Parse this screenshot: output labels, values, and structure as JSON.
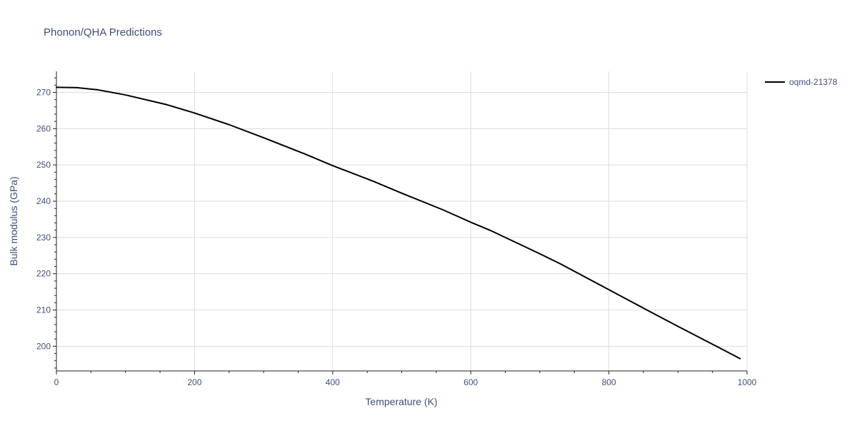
{
  "chart_data": {
    "type": "line",
    "title": "Phonon/QHA Predictions",
    "xlabel": "Temperature (K)",
    "ylabel": "Bulk modulus (GPa)",
    "xlim": [
      0,
      1000
    ],
    "ylim": [
      193.2,
      275.8
    ],
    "xticks": [
      0,
      200,
      400,
      600,
      800,
      1000
    ],
    "yticks": [
      200,
      210,
      220,
      230,
      240,
      250,
      260,
      270
    ],
    "x_minor_step": 50,
    "y_minor_step": 2,
    "grid": true,
    "legend_position": "top-right",
    "series": [
      {
        "name": "oqmd-21378",
        "color": "#000000",
        "x": [
          0,
          30,
          60,
          100,
          160,
          200,
          250,
          300,
          360,
          400,
          460,
          500,
          560,
          600,
          630,
          700,
          730,
          800,
          860,
          900,
          990
        ],
        "y": [
          271.4,
          271.3,
          270.7,
          269.3,
          266.6,
          264.3,
          261.1,
          257.5,
          253.0,
          249.8,
          245.4,
          242.2,
          237.6,
          234.2,
          231.8,
          225.5,
          222.7,
          215.6,
          209.5,
          205.5,
          196.6
        ]
      }
    ]
  }
}
